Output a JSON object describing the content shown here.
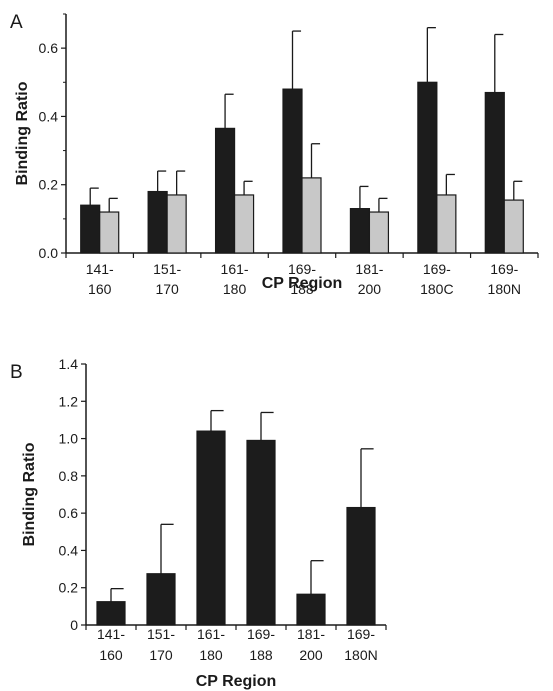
{
  "figure": {
    "panel_a_letter": "A",
    "panel_b_letter": "B"
  },
  "chart_data": [
    {
      "type": "bar",
      "panel": "A",
      "xlabel": "CP Region",
      "ylabel": "Binding Ratio",
      "ylim": [
        0,
        0.7
      ],
      "yticks": [
        "0.0",
        "0.2",
        "0.4",
        "0.6"
      ],
      "grid": false,
      "legend": "none",
      "categories": [
        [
          "141-",
          "160"
        ],
        [
          "151-",
          "170"
        ],
        [
          "161-",
          "180"
        ],
        [
          "169-",
          "188"
        ],
        [
          "181-",
          "200"
        ],
        [
          "169-",
          "180C"
        ],
        [
          "169-",
          "180N"
        ]
      ],
      "series": [
        {
          "color": "#1c1c1c",
          "values": [
            0.14,
            0.18,
            0.365,
            0.48,
            0.13,
            0.5,
            0.47
          ],
          "errors": [
            0.05,
            0.06,
            0.1,
            0.17,
            0.065,
            0.16,
            0.17
          ]
        },
        {
          "color": "#c8c8c8",
          "values": [
            0.12,
            0.17,
            0.17,
            0.22,
            0.12,
            0.17,
            0.155
          ],
          "errors": [
            0.04,
            0.07,
            0.04,
            0.1,
            0.04,
            0.06,
            0.055
          ]
        }
      ]
    },
    {
      "type": "bar",
      "panel": "B",
      "xlabel": "CP Region",
      "ylabel": "Binding Ratio",
      "ylim": [
        0,
        1.4
      ],
      "yticks": [
        "0",
        "0.2",
        "0.4",
        "0.6",
        "0.8",
        "1.0",
        "1.2",
        "1.4"
      ],
      "grid": false,
      "legend": "none",
      "categories": [
        [
          "141-",
          "160"
        ],
        [
          "151-",
          "170"
        ],
        [
          "161-",
          "180"
        ],
        [
          "169-",
          "188"
        ],
        [
          "181-",
          "200"
        ],
        [
          "169-",
          "180N"
        ]
      ],
      "series": [
        {
          "color": "#1c1c1c",
          "values": [
            0.125,
            0.275,
            1.04,
            0.99,
            0.165,
            0.63
          ],
          "errors": [
            0.07,
            0.265,
            0.11,
            0.15,
            0.18,
            0.315
          ]
        }
      ]
    }
  ]
}
